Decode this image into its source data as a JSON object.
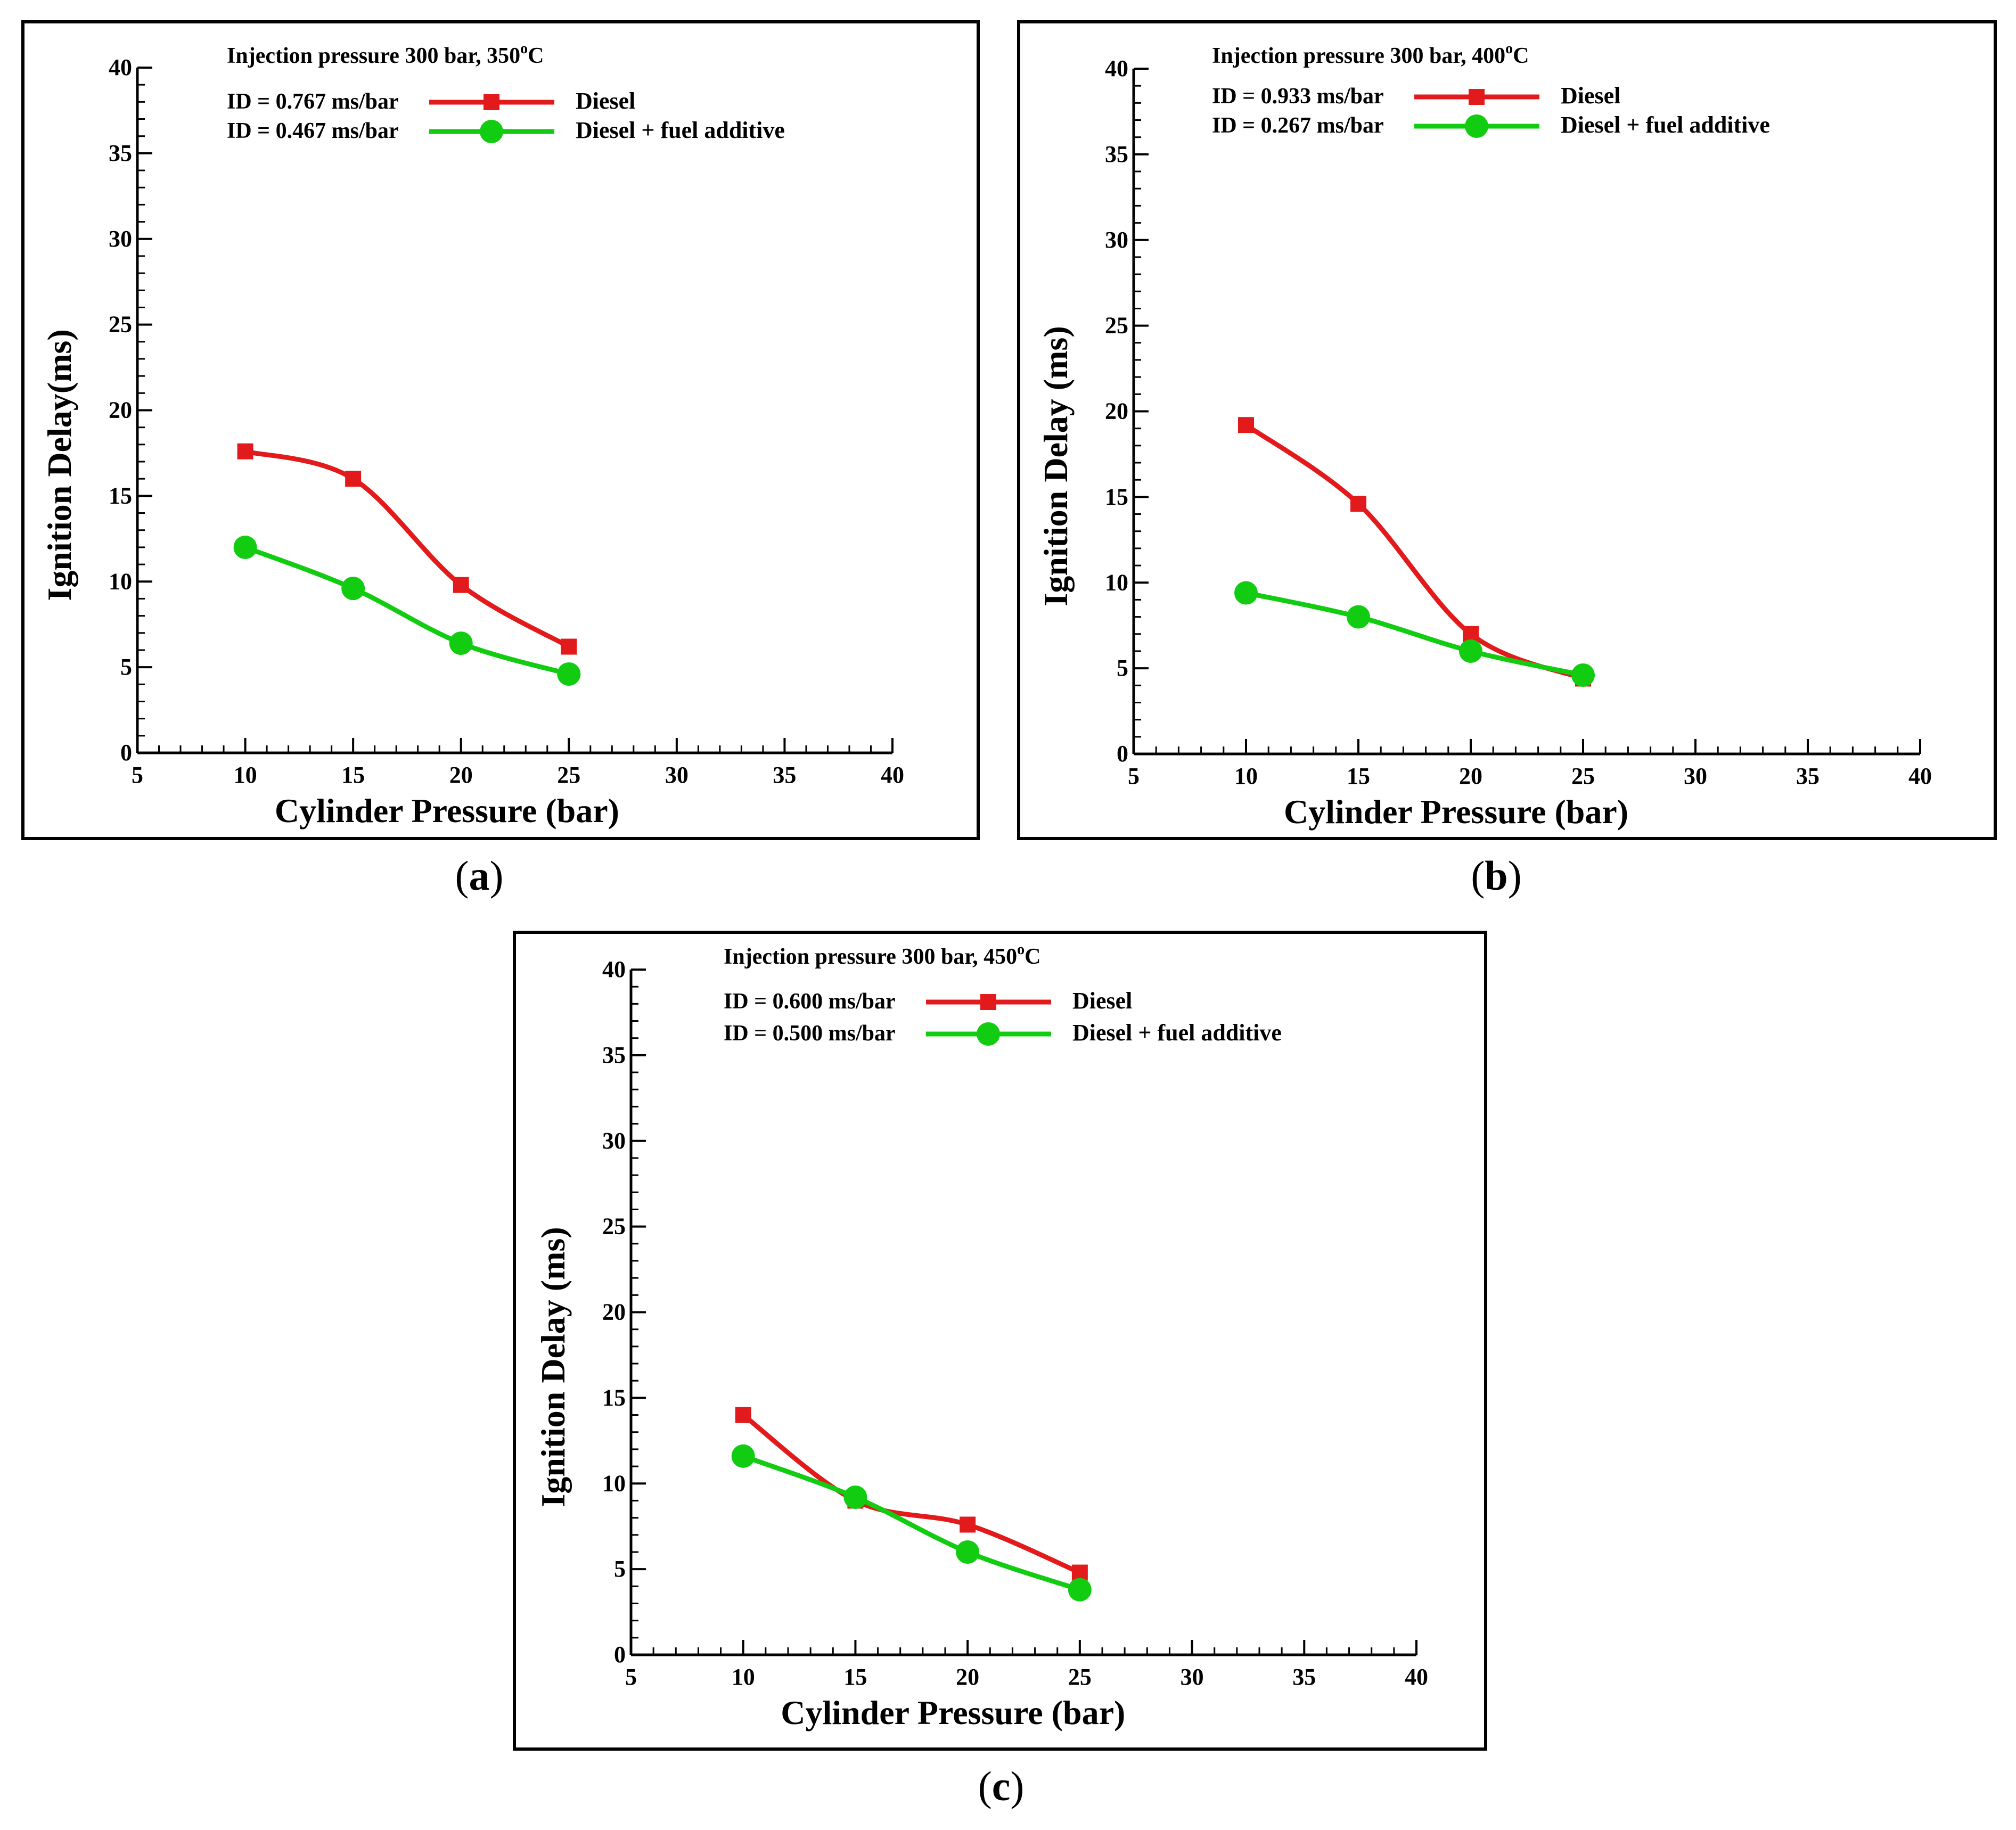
{
  "colors": {
    "diesel": "#e31a1c",
    "additive": "#12cc12",
    "axis": "#000000"
  },
  "chart_data": [
    {
      "type": "line",
      "id": "a",
      "caption": {
        "open": "(",
        "letter": "a",
        "close": ")"
      },
      "title": "Injection pressure 300 bar, 350",
      "title_sup": "o",
      "title_unit": "C",
      "xlabel": "Cylinder Pressure (bar)",
      "ylabel": "Ignition Delay(ms)",
      "xlim": [
        5,
        40
      ],
      "ylim": [
        0,
        40
      ],
      "xticks": [
        "5",
        "10",
        "15",
        "20",
        "25",
        "30",
        "35",
        "40"
      ],
      "yticks": [
        "0",
        "5",
        "10",
        "15",
        "20",
        "25",
        "30",
        "35",
        "40"
      ],
      "x": [
        10,
        15,
        20,
        25
      ],
      "series": [
        {
          "name": "Diesel",
          "id_label": "ID = 0.767 ms/bar",
          "marker": "square",
          "color": "#e31a1c",
          "values": [
            17.6,
            16.0,
            9.8,
            6.2
          ]
        },
        {
          "name": "Diesel + fuel additive",
          "id_label": "ID = 0.467 ms/bar",
          "marker": "circle",
          "color": "#12cc12",
          "values": [
            12.0,
            9.6,
            6.4,
            4.6
          ]
        }
      ]
    },
    {
      "type": "line",
      "id": "b",
      "caption": {
        "open": "(",
        "letter": "b",
        "close": ")"
      },
      "title": "Injection pressure 300 bar, 400",
      "title_sup": "o",
      "title_unit": "C",
      "xlabel": "Cylinder Pressure (bar)",
      "ylabel": "Ignition Delay (ms)",
      "xlim": [
        5,
        40
      ],
      "ylim": [
        0,
        40
      ],
      "xticks": [
        "5",
        "10",
        "15",
        "20",
        "25",
        "30",
        "35",
        "40"
      ],
      "yticks": [
        "0",
        "5",
        "10",
        "15",
        "20",
        "25",
        "30",
        "35",
        "40"
      ],
      "x": [
        10,
        15,
        20,
        25
      ],
      "series": [
        {
          "name": "Diesel",
          "id_label": "ID = 0.933 ms/bar",
          "marker": "square",
          "color": "#e31a1c",
          "values": [
            19.2,
            14.6,
            7.0,
            4.4
          ]
        },
        {
          "name": "Diesel + fuel additive",
          "id_label": "ID = 0.267 ms/bar",
          "marker": "circle",
          "color": "#12cc12",
          "values": [
            9.4,
            8.0,
            6.0,
            4.6
          ]
        }
      ]
    },
    {
      "type": "line",
      "id": "c",
      "caption": {
        "open": "(",
        "letter": "c",
        "close": ")"
      },
      "title": "Injection pressure 300 bar, 450",
      "title_sup": "o",
      "title_unit": "C",
      "xlabel": "Cylinder Pressure (bar)",
      "ylabel": "Ignition Delay (ms)",
      "xlim": [
        5,
        40
      ],
      "ylim": [
        0,
        40
      ],
      "xticks": [
        "5",
        "10",
        "15",
        "20",
        "25",
        "30",
        "35",
        "40"
      ],
      "yticks": [
        "0",
        "5",
        "10",
        "15",
        "20",
        "25",
        "30",
        "35",
        "40"
      ],
      "x": [
        10,
        15,
        20,
        25
      ],
      "series": [
        {
          "name": "Diesel",
          "id_label": "ID = 0.600 ms/bar",
          "marker": "square",
          "color": "#e31a1c",
          "values": [
            14.0,
            9.0,
            7.6,
            4.8
          ]
        },
        {
          "name": "Diesel + fuel additive",
          "id_label": "ID = 0.500 ms/bar",
          "marker": "circle",
          "color": "#12cc12",
          "values": [
            11.6,
            9.2,
            6.0,
            3.8
          ]
        }
      ]
    }
  ]
}
